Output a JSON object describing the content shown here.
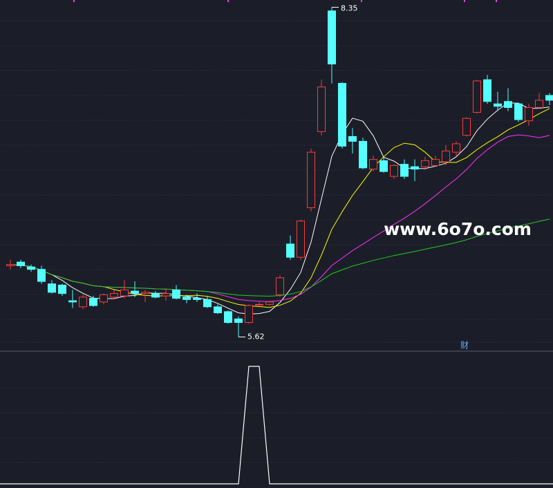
{
  "chart_data": {
    "type": "candlestick",
    "open": [
      6.21,
      6.24,
      6.2,
      6.18,
      6.06,
      6.05,
      5.92,
      5.87,
      5.94,
      5.91,
      5.95,
      5.96,
      6.0,
      5.98,
      5.98,
      5.96,
      6.01,
      5.95,
      5.94,
      5.93,
      5.87,
      5.83,
      5.77,
      5.74,
      5.89,
      5.89,
      5.97,
      6.39,
      6.28,
      6.69,
      7.32,
      8.32,
      7.72,
      7.28,
      7.24,
      7.01,
      7.08,
      6.95,
      7.05,
      7.03,
      7.03,
      7.04,
      7.07,
      7.15,
      7.29,
      7.48,
      7.75,
      7.55,
      7.57,
      7.55,
      7.41,
      7.52,
      7.62
    ],
    "close": [
      6.22,
      6.21,
      6.18,
      6.08,
      5.99,
      5.98,
      5.91,
      5.95,
      5.88,
      5.97,
      5.98,
      6.01,
      5.98,
      5.99,
      5.95,
      5.98,
      5.94,
      5.93,
      5.93,
      5.87,
      5.82,
      5.74,
      5.74,
      5.88,
      5.89,
      5.91,
      6.11,
      6.28,
      6.58,
      7.15,
      7.69,
      7.88,
      7.2,
      7.24,
      7.02,
      7.09,
      6.99,
      7.04,
      6.95,
      7.01,
      7.08,
      7.09,
      7.16,
      7.22,
      7.43,
      7.74,
      7.57,
      7.53,
      7.52,
      7.42,
      7.52,
      7.58,
      7.58
    ],
    "high": [
      6.26,
      6.26,
      6.22,
      6.21,
      6.09,
      6.06,
      6.01,
      5.97,
      5.96,
      5.98,
      6.01,
      6.09,
      6.08,
      6.01,
      6.0,
      6.02,
      6.05,
      5.97,
      5.98,
      5.96,
      5.89,
      5.84,
      5.79,
      5.89,
      5.91,
      5.92,
      6.13,
      6.46,
      6.59,
      7.18,
      7.75,
      8.35,
      7.73,
      7.35,
      7.27,
      7.12,
      7.11,
      7.05,
      7.09,
      7.09,
      7.11,
      7.12,
      7.21,
      7.24,
      7.44,
      7.75,
      7.79,
      7.65,
      7.68,
      7.56,
      7.55,
      7.64,
      7.64
    ],
    "low": [
      6.18,
      6.19,
      6.16,
      6.06,
      5.98,
      5.96,
      5.86,
      5.85,
      5.87,
      5.89,
      5.93,
      5.94,
      5.95,
      5.91,
      5.94,
      5.92,
      5.93,
      5.9,
      5.91,
      5.86,
      5.81,
      5.73,
      5.62,
      5.73,
      5.88,
      5.88,
      5.95,
      6.26,
      6.26,
      6.66,
      7.29,
      7.72,
      7.18,
      7.14,
      7.01,
      6.99,
      6.98,
      6.93,
      6.93,
      6.91,
      7.0,
      7.03,
      7.04,
      7.12,
      7.28,
      7.47,
      7.55,
      7.49,
      7.49,
      7.4,
      7.37,
      7.51,
      7.54
    ],
    "up_color": "#ff3b3b",
    "down_color": "#54ffff",
    "ylim": [
      5.52,
      8.41
    ],
    "moving_averages": [
      {
        "period": 5,
        "color": "#ffffff"
      },
      {
        "period": 10,
        "color": "#ffff00"
      },
      {
        "period": 20,
        "color": "#ff33ff"
      },
      {
        "period": 60,
        "color": "#22cc22"
      }
    ],
    "high_label": 8.35,
    "low_label": 5.62,
    "marker_text": "财",
    "watermark": "www.6o7o.com",
    "indicator": {
      "type": "line",
      "color": "#ffffff",
      "values": [
        0,
        0,
        0,
        0,
        0,
        0,
        0,
        0,
        0,
        0,
        0,
        0,
        0,
        0,
        0,
        0,
        0,
        0,
        0,
        0,
        0,
        0,
        0,
        1,
        1,
        0,
        0,
        0,
        0,
        0,
        0,
        0,
        0,
        0,
        0,
        0,
        0,
        0,
        0,
        0,
        0,
        0,
        0,
        0,
        0,
        0,
        0,
        0,
        0,
        0,
        0,
        0,
        0
      ],
      "ylim": [
        0,
        1
      ]
    }
  }
}
